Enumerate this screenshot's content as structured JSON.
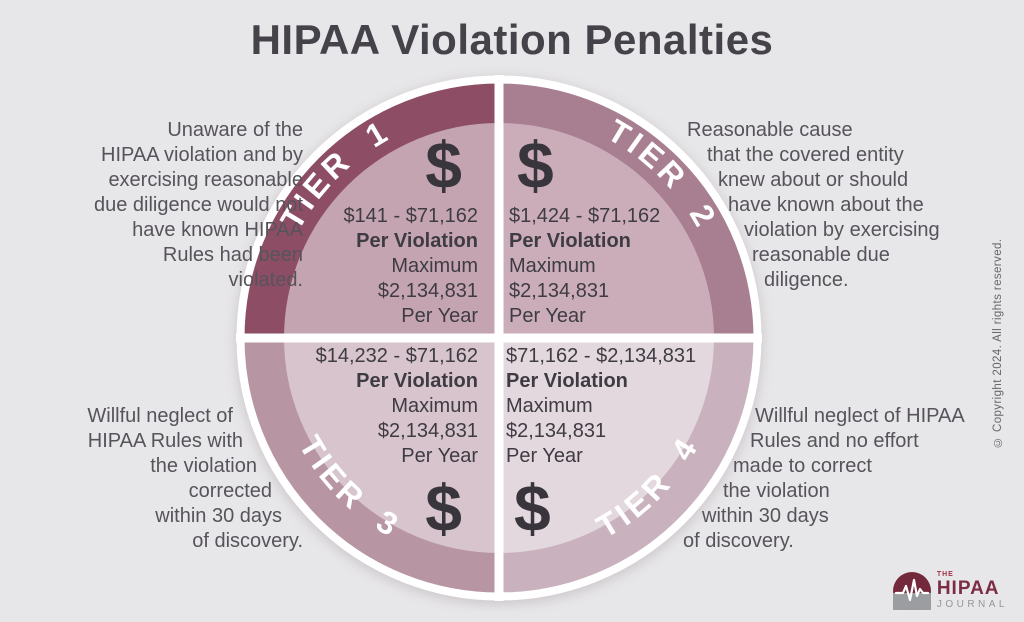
{
  "title": "HIPAA Violation Penalties",
  "dollar_symbol": "$",
  "copyright": "© Copyright 2024. All rights reserved.",
  "colors": {
    "background": "#e7e6e8",
    "tier1_arc": "#8d4e65",
    "tier1_fill": "#c5a4b1",
    "tier2_arc": "#a87e91",
    "tier2_fill": "#cbadb9",
    "tier3_arc": "#b795a3",
    "tier3_fill": "#d7c4cd",
    "tier4_arc": "#c9b1bd",
    "tier4_fill": "#e3d8dd",
    "divider": "#ffffff",
    "title_text": "#454349",
    "body_text": "#57535b",
    "money_text": "#3e3b42",
    "logo_maroon": "#7b2d43",
    "logo_gray": "#95979a"
  },
  "tiers": [
    {
      "label": "TIER 1",
      "money_lines": [
        "$141 - $71,162",
        "Per Violation",
        "Maximum",
        "$2,134,831",
        "Per Year"
      ],
      "description_lines": [
        "Unaware of the",
        "HIPAA violation and by",
        "exercising reasonable",
        "due diligence would not",
        "have known HIPAA",
        "Rules had been",
        "violated."
      ]
    },
    {
      "label": "TIER 2",
      "money_lines": [
        "$1,424 - $71,162",
        "Per Violation",
        "Maximum",
        "$2,134,831",
        "Per Year"
      ],
      "description_lines": [
        "Reasonable cause",
        "that the covered entity",
        "knew about or should",
        "have known about the",
        "violation by exercising",
        "reasonable due",
        "diligence."
      ]
    },
    {
      "label": "TIER 3",
      "money_lines": [
        "$14,232 - $71,162",
        "Per Violation",
        "Maximum",
        "$2,134,831",
        "Per Year"
      ],
      "description_lines": [
        "Willful neglect of",
        "HIPAA Rules with",
        "the violation",
        "corrected",
        "within 30 days",
        "of discovery."
      ]
    },
    {
      "label": "TIER 4",
      "money_lines": [
        "$71,162 - $2,134,831",
        "Per Violation",
        "Maximum",
        "$2,134,831",
        "Per Year"
      ],
      "description_lines": [
        "Willful neglect of HIPAA",
        "Rules and no effort",
        "made to correct",
        "the violation",
        "within 30 days",
        "of discovery."
      ]
    }
  ],
  "logo": {
    "the": "THE",
    "hipaa": "HIPAA",
    "journal": "JOURNAL"
  }
}
